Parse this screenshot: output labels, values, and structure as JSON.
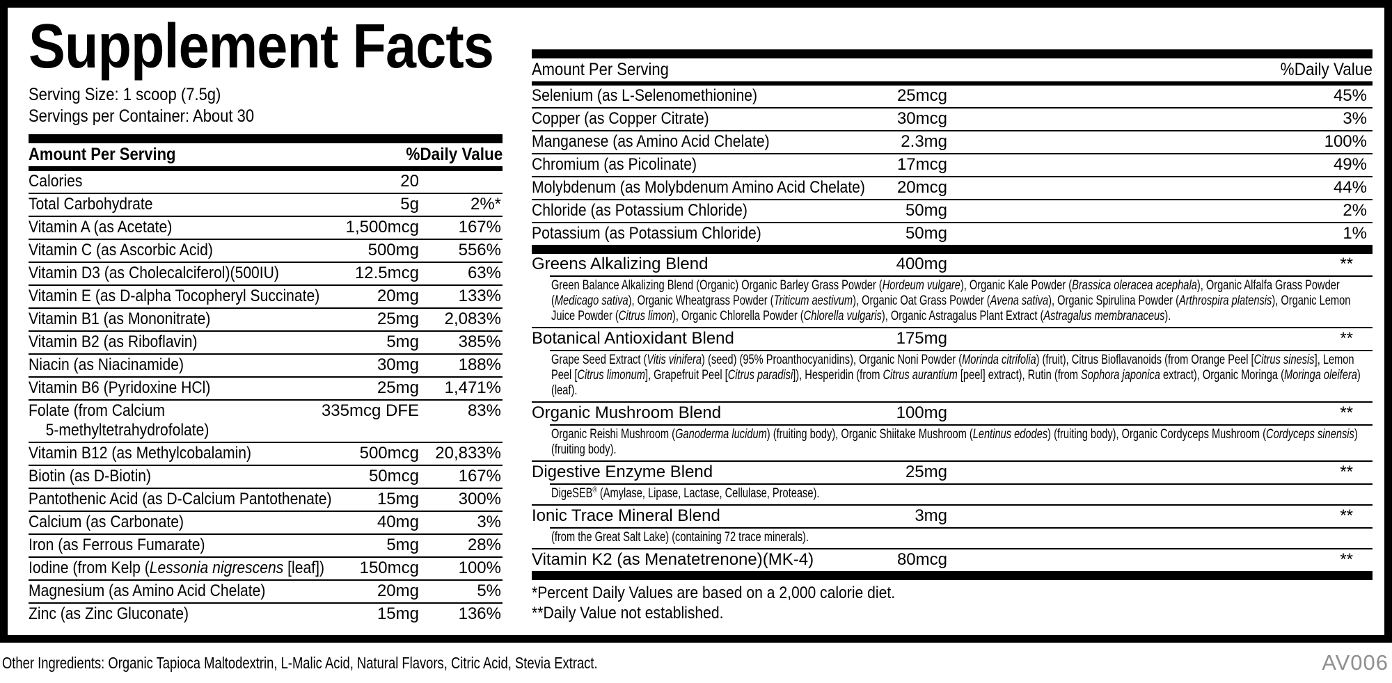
{
  "title": "Supplement Facts",
  "serving": {
    "size": "Serving Size: 1 scoop (7.5g)",
    "per_container": "Servings per Container: About 30"
  },
  "left_table": {
    "header": {
      "amount": "Amount Per Serving",
      "dv": "%Daily Value"
    },
    "rows": [
      {
        "name": [
          {
            "t": "Calories"
          }
        ],
        "amount": "20",
        "dv": ""
      },
      {
        "name": [
          {
            "t": "Total Carbohydrate"
          }
        ],
        "amount": "5g",
        "dv": "2%*"
      },
      {
        "name": [
          {
            "t": "Vitamin A (as Acetate)"
          }
        ],
        "amount": "1,500mcg",
        "dv": "167%"
      },
      {
        "name": [
          {
            "t": "Vitamin C (as Ascorbic Acid)"
          }
        ],
        "amount": "500mg",
        "dv": "556%"
      },
      {
        "name": [
          {
            "t": "Vitamin D3 (as Cholecalciferol)(500IU)"
          }
        ],
        "amount": "12.5mcg",
        "dv": "63%"
      },
      {
        "name": [
          {
            "t": "Vitamin E (as D-alpha Tocopheryl Succinate)"
          }
        ],
        "amount": "20mg",
        "dv": "133%"
      },
      {
        "name": [
          {
            "t": "Vitamin B1 (as Mononitrate)"
          }
        ],
        "amount": "25mg",
        "dv": "2,083%"
      },
      {
        "name": [
          {
            "t": "Vitamin B2 (as Riboflavin)"
          }
        ],
        "amount": "5mg",
        "dv": "385%"
      },
      {
        "name": [
          {
            "t": "Niacin (as Niacinamide)"
          }
        ],
        "amount": "30mg",
        "dv": "188%"
      },
      {
        "name": [
          {
            "t": "Vitamin B6 (Pyridoxine HCl)"
          }
        ],
        "amount": "25mg",
        "dv": "1,471%"
      },
      {
        "name": [
          {
            "t": "Folate (from Calcium"
          },
          {
            "t": "5-methyltetrahydrofolate)",
            "block": true
          }
        ],
        "amount": "335mcg DFE",
        "dv": "83%"
      },
      {
        "name": [
          {
            "t": "Vitamin B12 (as Methylcobalamin)"
          }
        ],
        "amount": "500mcg",
        "dv": "20,833%"
      },
      {
        "name": [
          {
            "t": "Biotin (as D-Biotin)"
          }
        ],
        "amount": "50mcg",
        "dv": "167%"
      },
      {
        "name": [
          {
            "t": "Pantothenic Acid (as D-Calcium Pantothenate)"
          }
        ],
        "amount": "15mg",
        "dv": "300%"
      },
      {
        "name": [
          {
            "t": "Calcium (as Carbonate)"
          }
        ],
        "amount": "40mg",
        "dv": "3%"
      },
      {
        "name": [
          {
            "t": "Iron (as Ferrous Fumarate)"
          }
        ],
        "amount": "5mg",
        "dv": "28%"
      },
      {
        "name": [
          {
            "t": "Iodine (from Kelp ("
          },
          {
            "t": "Lessonia nigrescens",
            "i": true
          },
          {
            "t": " [leaf])"
          }
        ],
        "amount": "150mcg",
        "dv": "100%"
      },
      {
        "name": [
          {
            "t": "Magnesium (as Amino Acid Chelate)"
          }
        ],
        "amount": "20mg",
        "dv": "5%"
      },
      {
        "name": [
          {
            "t": "Zinc (as Zinc Gluconate)"
          }
        ],
        "amount": "15mg",
        "dv": "136%"
      }
    ]
  },
  "right_table": {
    "header": {
      "amount": "Amount Per Serving",
      "dv": "%Daily Value"
    },
    "rows": [
      {
        "name": [
          {
            "t": "Selenium (as L-Selenomethionine)"
          }
        ],
        "amount": "25mcg",
        "dv": "45%"
      },
      {
        "name": [
          {
            "t": "Copper (as Copper Citrate)"
          }
        ],
        "amount": "30mcg",
        "dv": "3%"
      },
      {
        "name": [
          {
            "t": "Manganese (as Amino Acid Chelate)"
          }
        ],
        "amount": "2.3mg",
        "dv": "100%"
      },
      {
        "name": [
          {
            "t": "Chromium (as Picolinate)"
          }
        ],
        "amount": "17mcg",
        "dv": "49%"
      },
      {
        "name": [
          {
            "t": "Molybdenum (as Molybdenum Amino Acid Chelate)"
          }
        ],
        "amount": "20mcg",
        "dv": "44%"
      },
      {
        "name": [
          {
            "t": "Chloride (as Potassium Chloride)"
          }
        ],
        "amount": "50mg",
        "dv": "2%"
      },
      {
        "name": [
          {
            "t": "Potassium (as Potassium Chloride)"
          }
        ],
        "amount": "50mg",
        "dv": "1%"
      }
    ],
    "blends": [
      {
        "name": "Greens Alkalizing Blend",
        "amount": "400mg",
        "dv": "**",
        "desc": [
          {
            "t": "Green Balance Alkalizing Blend (Organic) Organic Barley Grass Powder ("
          },
          {
            "t": "Hordeum vulgare",
            "i": true
          },
          {
            "t": "), Organic Kale Powder ("
          },
          {
            "t": "Brassica oleracea acephala",
            "i": true
          },
          {
            "t": "), Organic Alfalfa Grass Powder ("
          },
          {
            "t": "Medicago sativa",
            "i": true
          },
          {
            "t": "), Organic Wheatgrass Powder ("
          },
          {
            "t": "Triticum aestivum",
            "i": true
          },
          {
            "t": "), Organic Oat Grass Powder ("
          },
          {
            "t": "Avena sativa",
            "i": true
          },
          {
            "t": "), Organic Spirulina Powder ("
          },
          {
            "t": "Arthrospira platensis",
            "i": true
          },
          {
            "t": "), Organic Lemon Juice Powder ("
          },
          {
            "t": "Citrus limon",
            "i": true
          },
          {
            "t": "), Organic Chlorella Powder ("
          },
          {
            "t": "Chlorella vulgaris",
            "i": true
          },
          {
            "t": "), Organic Astragalus Plant Extract ("
          },
          {
            "t": "Astragalus membranaceus",
            "i": true
          },
          {
            "t": ")."
          }
        ]
      },
      {
        "name": "Botanical Antioxidant Blend",
        "amount": "175mg",
        "dv": "**",
        "desc": [
          {
            "t": "Grape Seed Extract ("
          },
          {
            "t": "Vitis vinifera",
            "i": true
          },
          {
            "t": ") (seed) (95% Proanthocyanidins), Organic Noni Powder ("
          },
          {
            "t": "Morinda citrifolia",
            "i": true
          },
          {
            "t": ") (fruit), Citrus Bioflavanoids (from Orange Peel ["
          },
          {
            "t": "Citrus sinesis",
            "i": true
          },
          {
            "t": "], Lemon Peel ["
          },
          {
            "t": "Citrus limonum",
            "i": true
          },
          {
            "t": "], Grapefruit Peel ["
          },
          {
            "t": "Citrus paradisi",
            "i": true
          },
          {
            "t": "]), Hesperidin (from "
          },
          {
            "t": "Citrus aurantium",
            "i": true
          },
          {
            "t": " [peel] extract), Rutin (from "
          },
          {
            "t": "Sophora japonica",
            "i": true
          },
          {
            "t": " extract), Organic Moringa ("
          },
          {
            "t": "Moringa oleifera",
            "i": true
          },
          {
            "t": ") (leaf)."
          }
        ]
      },
      {
        "name": "Organic Mushroom Blend",
        "amount": "100mg",
        "dv": "**",
        "desc": [
          {
            "t": "Organic Reishi Mushroom ("
          },
          {
            "t": "Ganoderma lucidum",
            "i": true
          },
          {
            "t": ") (fruiting body), Organic Shiitake Mushroom ("
          },
          {
            "t": "Lentinus edodes",
            "i": true
          },
          {
            "t": ") (fruiting body), Organic Cordyceps Mushroom ("
          },
          {
            "t": "Cordyceps sinensis",
            "i": true
          },
          {
            "t": ") (fruiting body)."
          }
        ]
      },
      {
        "name": "Digestive Enzyme Blend",
        "amount": "25mg",
        "dv": "**",
        "desc": [
          {
            "t": "DigeSEB"
          },
          {
            "t": "®",
            "sup": true
          },
          {
            "t": " (Amylase, Lipase, Lactase, Cellulase, Protease)."
          }
        ]
      },
      {
        "name": "Ionic Trace Mineral Blend",
        "amount": "3mg",
        "dv": "**",
        "desc": [
          {
            "t": "(from the Great Salt Lake) (containing 72 trace minerals)."
          }
        ]
      },
      {
        "name": "Vitamin K2 (as Menatetrenone)(MK-4)",
        "amount": "80mcg",
        "dv": "**",
        "desc": null
      }
    ],
    "footnotes": [
      "*Percent Daily Values are based on a 2,000 calorie diet.",
      "**Daily Value not established."
    ]
  },
  "footer": {
    "other_ingredients": "Other Ingredients: Organic Tapioca Maltodextrin, L-Malic Acid, Natural Flavors, Citric Acid, Stevia Extract.",
    "code": "AV006"
  },
  "colors": {
    "ink": "#000000",
    "code_gray": "#8f8f8f"
  }
}
